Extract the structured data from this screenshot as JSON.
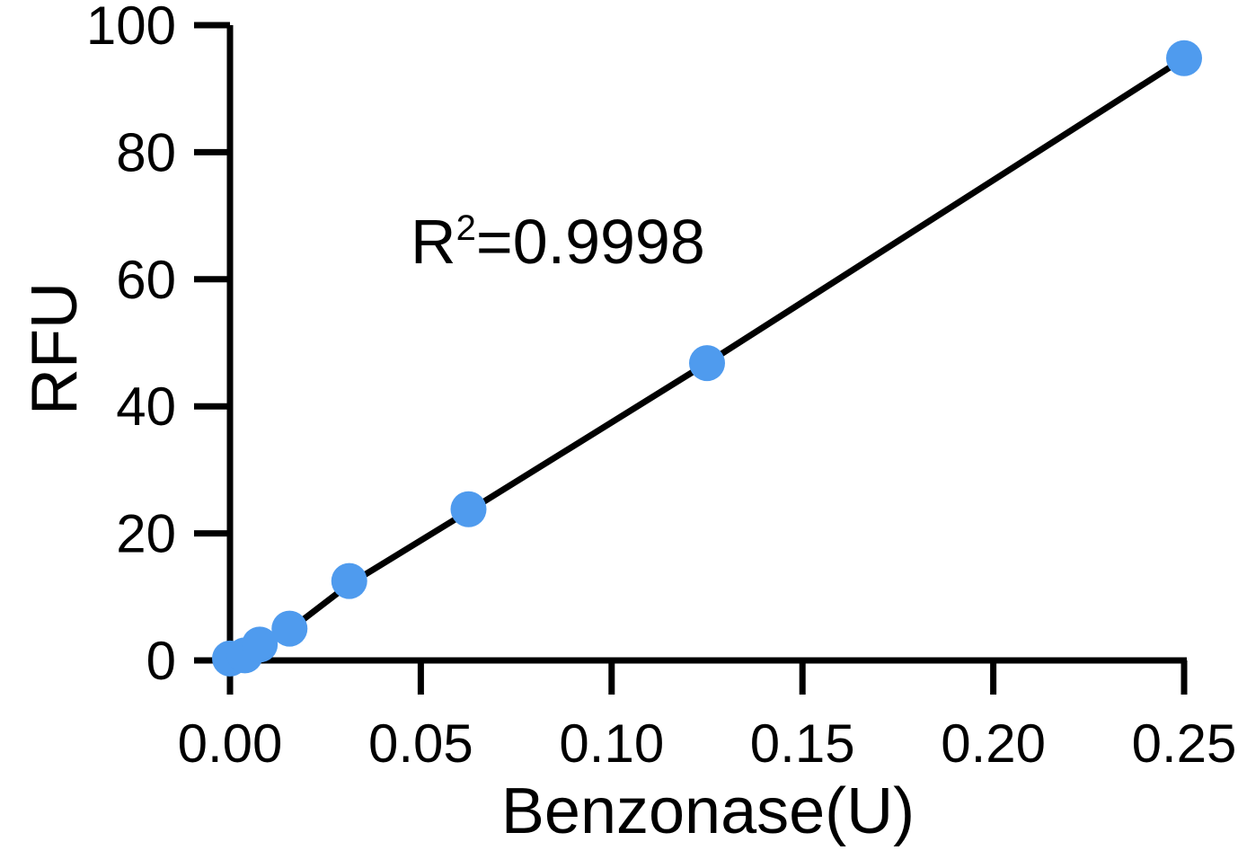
{
  "chart_data": {
    "type": "scatter",
    "title": "",
    "xlabel": "Benzonase(U)",
    "ylabel": "RFU",
    "xlim": [
      0,
      0.25
    ],
    "ylim": [
      0,
      100
    ],
    "x_ticks": [
      "0.00",
      "0.05",
      "0.10",
      "0.15",
      "0.20",
      "0.25"
    ],
    "y_ticks": [
      "0",
      "20",
      "40",
      "60",
      "80",
      "100"
    ],
    "grid": false,
    "series": [
      {
        "color": "#4F9BEE",
        "x": [
          0,
          0.0039,
          0.0078,
          0.0156,
          0.03125,
          0.0625,
          0.125,
          0.25
        ],
        "y": [
          0.3,
          0.8,
          2.5,
          5.0,
          12.5,
          23.8,
          46.8,
          94.8
        ]
      }
    ],
    "fit_line": {
      "color": "#000000",
      "x": [
        0,
        0.0039,
        0.0078,
        0.0156,
        0.03125,
        0.0625,
        0.125,
        0.25
      ],
      "y": [
        0.0,
        1.0,
        2.3,
        4.8,
        12.0,
        23.5,
        46.8,
        94.8
      ]
    },
    "annotation": {
      "base": "R",
      "sup": "2",
      "rest": "=0.9998"
    }
  }
}
